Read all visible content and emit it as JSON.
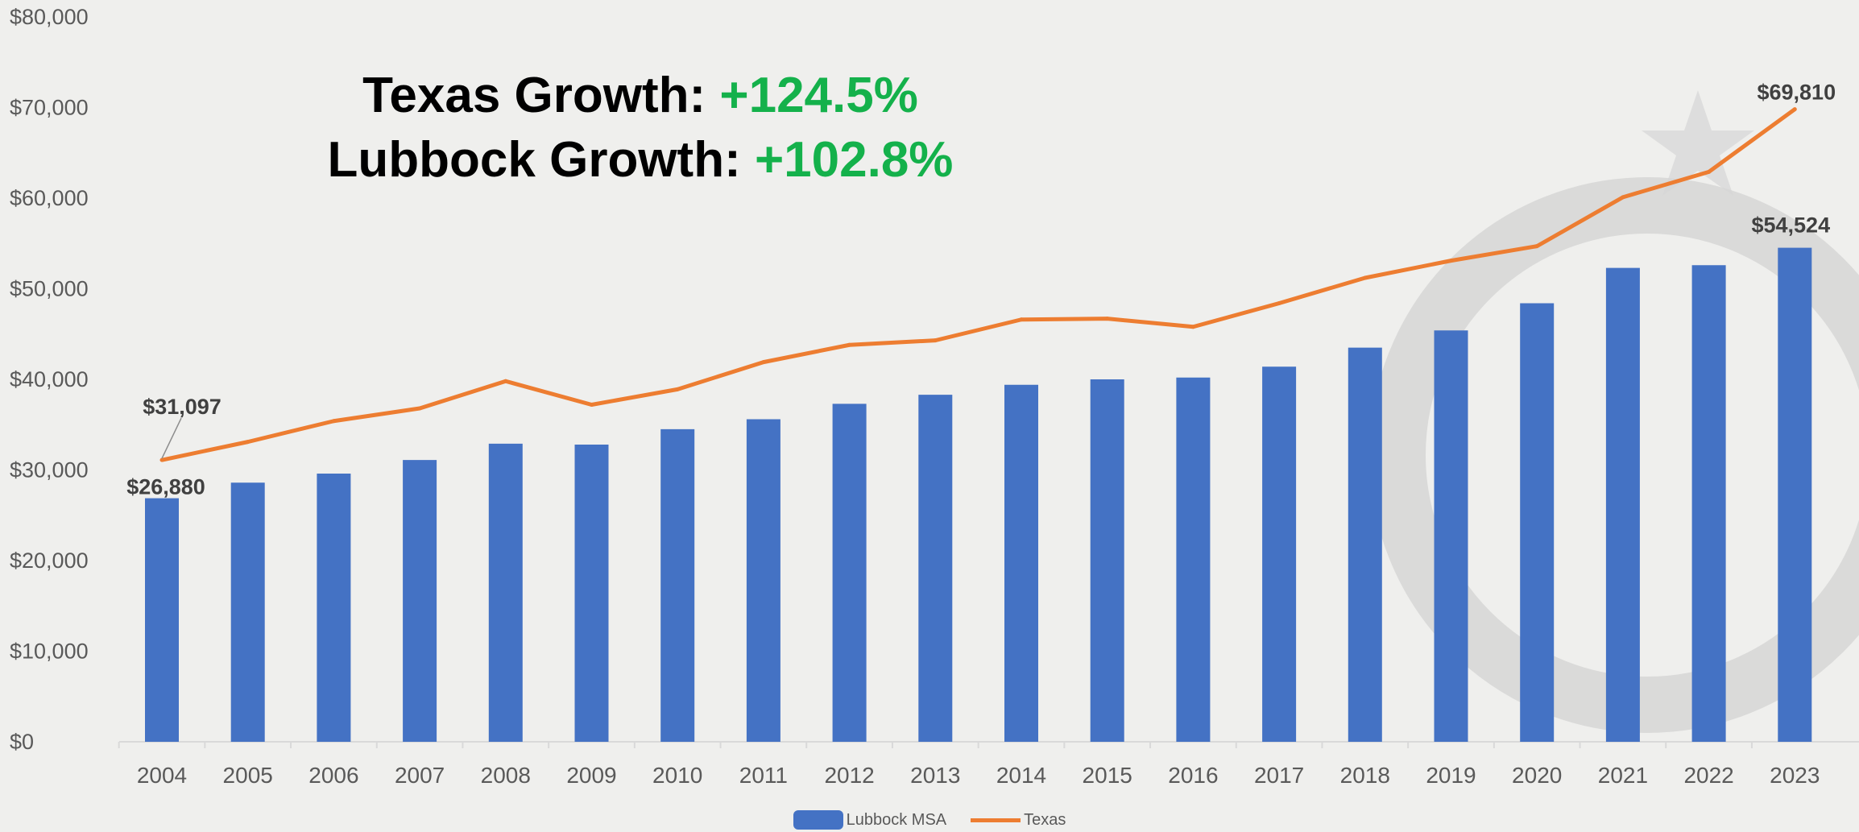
{
  "headline": {
    "texas_label": "Texas Growth: ",
    "texas_value": "+124.5%",
    "lubbock_label": "Lubbock Growth: ",
    "lubbock_value": "+102.8%"
  },
  "colors": {
    "bar": "#4472c4",
    "line": "#ed7d31",
    "growth_text": "#14b14b",
    "axis_text": "#595959",
    "label_text": "#404040"
  },
  "chart_data": {
    "type": "bar",
    "categories": [
      "2004",
      "2005",
      "2006",
      "2007",
      "2008",
      "2009",
      "2010",
      "2011",
      "2012",
      "2013",
      "2014",
      "2015",
      "2016",
      "2017",
      "2018",
      "2019",
      "2020",
      "2021",
      "2022",
      "2023"
    ],
    "series": [
      {
        "name": "Lubbock MSA",
        "type": "bar",
        "values": [
          26880,
          28600,
          29600,
          31100,
          32900,
          32800,
          34500,
          35600,
          37300,
          38300,
          39400,
          40000,
          40200,
          41400,
          43500,
          45400,
          48400,
          52300,
          52600,
          54524
        ]
      },
      {
        "name": "Texas",
        "type": "line",
        "values": [
          31097,
          33100,
          35400,
          36800,
          39800,
          37200,
          38900,
          41900,
          43800,
          44300,
          46600,
          46700,
          45800,
          48400,
          51200,
          53100,
          54700,
          60100,
          62900,
          69810
        ]
      }
    ],
    "data_labels": [
      {
        "series": "Lubbock MSA",
        "category": "2004",
        "text": "$26,880"
      },
      {
        "series": "Texas",
        "category": "2004",
        "text": "$31,097"
      },
      {
        "series": "Lubbock MSA",
        "category": "2023",
        "text": "$54,524"
      },
      {
        "series": "Texas",
        "category": "2023",
        "text": "$69,810"
      }
    ],
    "y_ticks": [
      "$0",
      "$10,000",
      "$20,000",
      "$30,000",
      "$40,000",
      "$50,000",
      "$60,000",
      "$70,000",
      "$80,000"
    ],
    "ylim": [
      0,
      80000
    ],
    "grid": false,
    "legend": "bottom-center"
  }
}
